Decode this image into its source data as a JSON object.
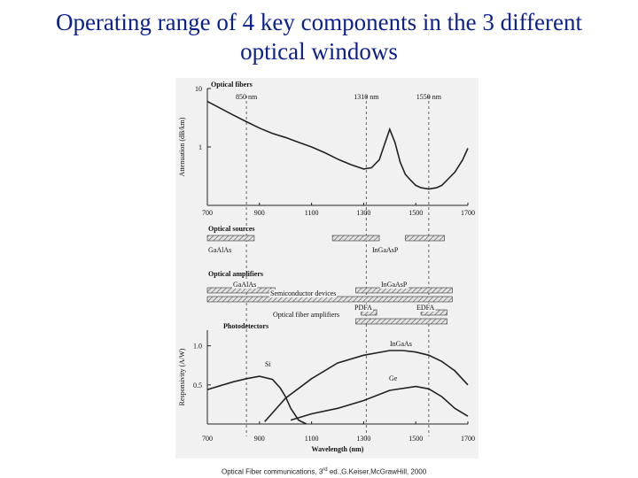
{
  "slide": {
    "title_line1": "Operating range of 4 key components in the 3 different",
    "title_line2": "optical windows",
    "caption_main": "Optical Fiber communications, 3",
    "caption_sup": "rd",
    "caption_rest": " ed.,G.Keiser,McGrawHill, 2000",
    "title_color": "#0b1f8f"
  },
  "figure": {
    "window_markers": [
      {
        "wavelength": 850,
        "label": "850 nm"
      },
      {
        "wavelength": 1310,
        "label": "1310 nm"
      },
      {
        "wavelength": 1550,
        "label": "1550 nm"
      }
    ],
    "x_ticks": [
      "700",
      "900",
      "1100",
      "1300",
      "1500",
      "1700"
    ]
  },
  "chart_data": [
    {
      "type": "line",
      "panel": "Optical fibers",
      "title": "Optical fibers",
      "ylabel": "Attenuation (dB/km)",
      "xlim": [
        700,
        1700
      ],
      "yscale": "log",
      "ylim": [
        0.1,
        10
      ],
      "y_ticks": [
        "10",
        "1"
      ],
      "series": [
        {
          "x": [
            700,
            750,
            800,
            850,
            900,
            950,
            1000,
            1050,
            1100,
            1150,
            1200,
            1250,
            1300,
            1330,
            1360,
            1380,
            1400,
            1420,
            1440,
            1460,
            1480,
            1500,
            1520,
            1550,
            1580,
            1600,
            1630,
            1650,
            1680,
            1700
          ],
          "y": [
            6.0,
            4.6,
            3.5,
            2.7,
            2.1,
            1.7,
            1.45,
            1.2,
            1.0,
            0.8,
            0.62,
            0.5,
            0.42,
            0.44,
            0.6,
            1.1,
            2.0,
            1.2,
            0.55,
            0.34,
            0.27,
            0.22,
            0.2,
            0.19,
            0.2,
            0.22,
            0.3,
            0.37,
            0.6,
            0.95
          ]
        }
      ]
    },
    {
      "type": "range",
      "panel": "Optical sources",
      "title": "Optical sources",
      "xlim": [
        700,
        1700
      ],
      "ranges": [
        {
          "label": "GaAlAs",
          "start": 700,
          "end": 880
        },
        {
          "label": "",
          "start": 1180,
          "end": 1360
        },
        {
          "label": "InGaAsP",
          "start": 1460,
          "end": 1610
        }
      ]
    },
    {
      "type": "range",
      "panel": "Optical amplifiers",
      "title": "Optical amplifiers",
      "xlim": [
        700,
        1700
      ],
      "ranges": [
        {
          "label": "GaAlAs",
          "start": 700,
          "end": 960
        },
        {
          "label": "InGaAsP",
          "start": 1270,
          "end": 1640
        },
        {
          "label": "Semiconductor devices",
          "start": 700,
          "end": 1640
        },
        {
          "label": "PDFA",
          "start": 1290,
          "end": 1350
        },
        {
          "label": "EDFA",
          "start": 1520,
          "end": 1620
        },
        {
          "label": "Optical fiber amplifiers",
          "start": 1270,
          "end": 1620
        }
      ]
    },
    {
      "type": "line",
      "panel": "Photodetectors",
      "title": "Photodetectors",
      "xlabel": "Wavelength (nm)",
      "ylabel": "Responsivity (A/W)",
      "xlim": [
        700,
        1700
      ],
      "ylim": [
        0,
        1.2
      ],
      "y_ticks": [
        "1.0",
        "0.5"
      ],
      "series": [
        {
          "name": "Si",
          "x": [
            700,
            750,
            800,
            850,
            900,
            950,
            980,
            1000,
            1020,
            1050,
            1080
          ],
          "y": [
            0.44,
            0.49,
            0.54,
            0.58,
            0.61,
            0.57,
            0.46,
            0.35,
            0.2,
            0.05,
            0.0
          ]
        },
        {
          "name": "InGaAs",
          "x": [
            920,
            1000,
            1100,
            1200,
            1300,
            1400,
            1450,
            1500,
            1550,
            1600,
            1650,
            1700
          ],
          "y": [
            0.03,
            0.33,
            0.58,
            0.78,
            0.88,
            0.94,
            0.94,
            0.92,
            0.88,
            0.8,
            0.68,
            0.5
          ]
        },
        {
          "name": "Ge",
          "x": [
            1020,
            1100,
            1200,
            1300,
            1400,
            1500,
            1550,
            1600,
            1650,
            1700
          ],
          "y": [
            0.05,
            0.13,
            0.2,
            0.3,
            0.43,
            0.48,
            0.45,
            0.35,
            0.2,
            0.1
          ]
        }
      ]
    }
  ]
}
